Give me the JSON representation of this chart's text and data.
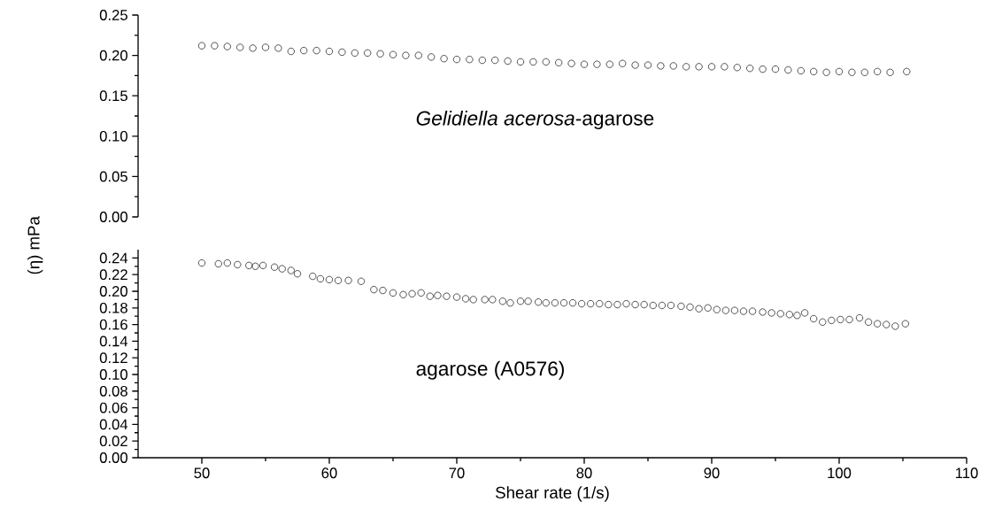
{
  "chart_data": [
    {
      "type": "scatter",
      "marker": "circle",
      "tick_labels": "y",
      "xlim": [
        45,
        110
      ],
      "ylim": [
        0,
        0.25
      ],
      "yticks": [
        {
          "value": 0,
          "label": "0.00"
        },
        {
          "value": 0.05,
          "label": "0.05"
        },
        {
          "value": 0.1,
          "label": "0.10"
        },
        {
          "value": 0.15,
          "label": "0.15"
        },
        {
          "value": 0.2,
          "label": "0.20"
        },
        {
          "value": 0.25,
          "label": "0.25"
        }
      ],
      "series": [
        {
          "name": "*Gelidiella acerosa*-agarose",
          "color": "#000000",
          "x": [
            50,
            51,
            52,
            53,
            54,
            55,
            56,
            57,
            58,
            59,
            60,
            61,
            62,
            63,
            64,
            65,
            66,
            67,
            68,
            69,
            70,
            71,
            72,
            73,
            74,
            75,
            76,
            77,
            78,
            79,
            80,
            81,
            82,
            83,
            84,
            85,
            86,
            87,
            88,
            89,
            90,
            91,
            92,
            93,
            94,
            95,
            96,
            97,
            98,
            99,
            100,
            101,
            102,
            103,
            104,
            105.3
          ],
          "values": [
            0.212,
            0.212,
            0.211,
            0.21,
            0.209,
            0.21,
            0.209,
            0.205,
            0.206,
            0.206,
            0.205,
            0.204,
            0.203,
            0.203,
            0.202,
            0.201,
            0.2,
            0.2,
            0.198,
            0.196,
            0.195,
            0.195,
            0.194,
            0.194,
            0.193,
            0.192,
            0.192,
            0.192,
            0.191,
            0.19,
            0.189,
            0.189,
            0.189,
            0.19,
            0.188,
            0.188,
            0.187,
            0.187,
            0.186,
            0.186,
            0.186,
            0.186,
            0.185,
            0.184,
            0.183,
            0.183,
            0.182,
            0.181,
            0.18,
            0.179,
            0.18,
            0.179,
            0.179,
            0.18,
            0.179,
            0.18
          ]
        }
      ]
    },
    {
      "type": "scatter",
      "marker": "circle",
      "xlabel": "Shear rate (1/s)",
      "ylabel": "(η) mPa",
      "xlim": [
        45,
        110
      ],
      "xticks": [
        50,
        60,
        70,
        80,
        90,
        100,
        110
      ],
      "ylim": [
        0,
        0.25
      ],
      "yticks": [
        {
          "value": 0,
          "label": "0.00"
        },
        {
          "value": 0.02,
          "label": "0.02"
        },
        {
          "value": 0.04,
          "label": "0.04"
        },
        {
          "value": 0.06,
          "label": "0.06"
        },
        {
          "value": 0.08,
          "label": "0.08"
        },
        {
          "value": 0.1,
          "label": "0.10"
        },
        {
          "value": 0.12,
          "label": "0.12"
        },
        {
          "value": 0.14,
          "label": "0.14"
        },
        {
          "value": 0.16,
          "label": "0.16"
        },
        {
          "value": 0.18,
          "label": "0.18"
        },
        {
          "value": 0.2,
          "label": "0.20"
        },
        {
          "value": 0.22,
          "label": "0.22"
        },
        {
          "value": 0.24,
          "label": "0.24"
        }
      ],
      "series": [
        {
          "name": "agarose (A0576)",
          "color": "#000000",
          "x": [
            50,
            51.3,
            52,
            52.8,
            53.7,
            54.2,
            54.8,
            55.7,
            56.3,
            57,
            57.5,
            58.7,
            59.3,
            60,
            60.7,
            61.5,
            62.5,
            63.5,
            64.2,
            65,
            65.8,
            66.5,
            67.2,
            67.9,
            68.5,
            69.2,
            70,
            70.7,
            71.3,
            72.2,
            72.8,
            73.6,
            74.2,
            75,
            75.6,
            76.4,
            77,
            77.7,
            78.4,
            79.1,
            79.8,
            80.5,
            81.2,
            81.9,
            82.6,
            83.3,
            84,
            84.7,
            85.4,
            86.1,
            86.8,
            87.6,
            88.3,
            89,
            89.7,
            90.4,
            91.1,
            91.8,
            92.5,
            93.2,
            94,
            94.7,
            95.4,
            96.1,
            96.7,
            97.3,
            98,
            98.7,
            99.4,
            100.1,
            100.8,
            101.6,
            102.3,
            103,
            103.7,
            104.4,
            105.2
          ],
          "values": [
            0.234,
            0.233,
            0.234,
            0.232,
            0.231,
            0.23,
            0.231,
            0.229,
            0.227,
            0.225,
            0.221,
            0.218,
            0.215,
            0.214,
            0.213,
            0.213,
            0.212,
            0.202,
            0.201,
            0.198,
            0.196,
            0.197,
            0.198,
            0.194,
            0.195,
            0.194,
            0.193,
            0.191,
            0.19,
            0.19,
            0.19,
            0.188,
            0.186,
            0.188,
            0.188,
            0.187,
            0.186,
            0.186,
            0.186,
            0.186,
            0.185,
            0.185,
            0.185,
            0.184,
            0.184,
            0.185,
            0.184,
            0.184,
            0.183,
            0.183,
            0.183,
            0.182,
            0.181,
            0.179,
            0.18,
            0.178,
            0.177,
            0.177,
            0.176,
            0.176,
            0.175,
            0.174,
            0.173,
            0.172,
            0.171,
            0.174,
            0.167,
            0.163,
            0.165,
            0.166,
            0.166,
            0.168,
            0.163,
            0.161,
            0.16,
            0.158,
            0.161
          ]
        }
      ]
    }
  ]
}
